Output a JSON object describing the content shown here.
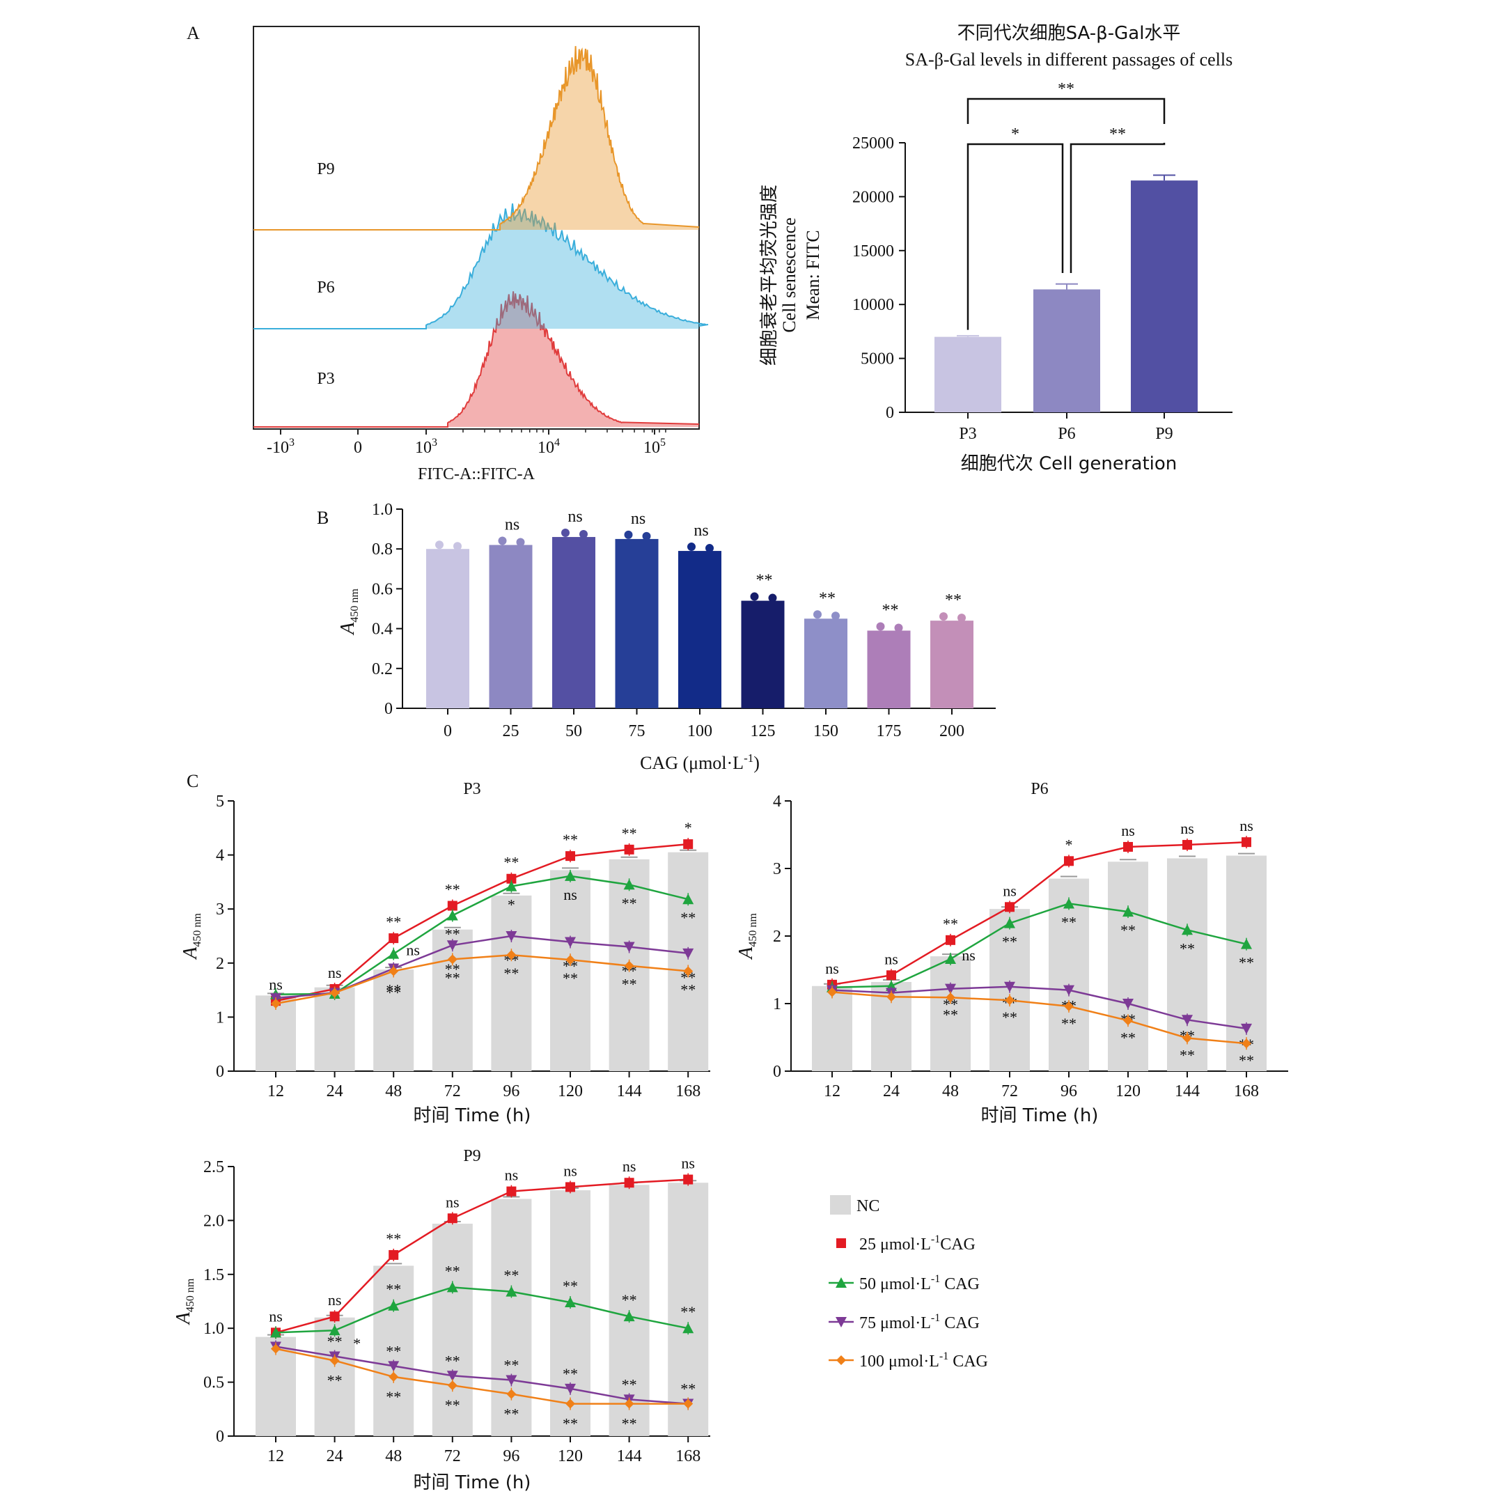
{
  "figure": {
    "panel_labels": {
      "a": "A",
      "b": "B",
      "c": "C"
    }
  },
  "chart_data": [
    {
      "id": "A_histogram",
      "type": "area",
      "xlabel": "FITC-A::FITC-A",
      "x_scale": "biexponential",
      "xticks": [
        "-10^3",
        "0",
        "10^3",
        "10^4",
        "10^5"
      ],
      "tracks": [
        {
          "name": "P3",
          "color": "#e03c3c",
          "label_color": "#d4882a",
          "peak_x": 5200,
          "range": [
            1500,
            40000
          ]
        },
        {
          "name": "P6",
          "color": "#3aaedb",
          "label_color": "#4dbde6",
          "peak_x": 5000,
          "range": [
            1000,
            200000
          ]
        },
        {
          "name": "P9",
          "color": "#e8962a",
          "label_color": "#f2c436",
          "peak_x": 19000,
          "range": [
            4000,
            60000
          ]
        }
      ]
    },
    {
      "id": "A_bar",
      "type": "bar",
      "title_cn": "不同代次细胞SA-β-Gal水平",
      "title_en": "SA-β-Gal levels in different passages of cells",
      "xlabel": "细胞代次 Cell generation",
      "ylabel_cn": "细胞衰老平均荧光强度",
      "ylabel_en1": "Cell senescence",
      "ylabel_en2": "Mean: FITC",
      "categories": [
        "P3",
        "P6",
        "P9"
      ],
      "values": [
        7000,
        11400,
        21500
      ],
      "errors": [
        100,
        500,
        500
      ],
      "colors": [
        "#c8c4e2",
        "#8d88c2",
        "#5250a3"
      ],
      "ylim": [
        0,
        25000
      ],
      "yticks": [
        "0",
        "5000",
        "10000",
        "15000",
        "20000",
        "25000"
      ],
      "significance": [
        {
          "from": "P3",
          "to": "P6",
          "label": "*"
        },
        {
          "from": "P6",
          "to": "P9",
          "label": "**"
        },
        {
          "from": "P3",
          "to": "P9",
          "label": "**"
        }
      ]
    },
    {
      "id": "B",
      "type": "bar",
      "xlabel": "CAG (μmol·L",
      "xlabel_sup": "-1",
      "xlabel_end": ")",
      "ylabel_main": "A",
      "ylabel_sub": "450 nm",
      "categories": [
        "0",
        "25",
        "50",
        "75",
        "100",
        "125",
        "150",
        "175",
        "200"
      ],
      "values": [
        0.8,
        0.82,
        0.86,
        0.85,
        0.79,
        0.54,
        0.45,
        0.39,
        0.44
      ],
      "marks": [
        "",
        "ns",
        "ns",
        "ns",
        "ns",
        "**",
        "**",
        "**",
        "**"
      ],
      "colors": [
        "#c8c4e2",
        "#8d88c2",
        "#5450a3",
        "#263f97",
        "#122b88",
        "#161d6a",
        "#8e8fc8",
        "#ad7eb8",
        "#c38fb8"
      ],
      "ylim": [
        0,
        1.0
      ],
      "yticks": [
        "0",
        "0.2",
        "0.4",
        "0.6",
        "0.8",
        "1.0"
      ]
    },
    {
      "id": "C_P3",
      "type": "line",
      "title": "P3",
      "xlabel": "时间 Time (h)",
      "ylabel_main": "A",
      "ylabel_sub": "450 nm",
      "categories": [
        "12",
        "24",
        "48",
        "72",
        "96",
        "120",
        "144",
        "168"
      ],
      "ylim": [
        0,
        5
      ],
      "yticks": [
        "0",
        "1",
        "2",
        "3",
        "4",
        "5"
      ],
      "nc": [
        1.4,
        1.55,
        1.88,
        2.62,
        3.25,
        3.72,
        3.92,
        4.05
      ],
      "series": [
        {
          "name": "25 μmol·L-1CAG",
          "values": [
            1.3,
            1.52,
            2.46,
            3.06,
            3.56,
            3.98,
            4.1,
            4.2
          ],
          "marks": [
            "ns",
            "ns",
            "**",
            "**",
            "**",
            "**",
            "**",
            "*"
          ]
        },
        {
          "name": "50 μmol·L-1 CAG",
          "values": [
            1.42,
            1.43,
            2.17,
            2.88,
            3.42,
            3.61,
            3.45,
            3.18
          ],
          "marks": [
            "",
            "",
            "ns",
            "**",
            "*",
            "ns",
            "**",
            "**"
          ]
        },
        {
          "name": "75 μmol·L-1 CAG",
          "values": [
            1.35,
            1.45,
            1.9,
            2.33,
            2.5,
            2.39,
            2.3,
            2.18
          ],
          "marks": [
            "",
            "",
            "**",
            "**",
            "**",
            "**",
            "**",
            "**"
          ]
        },
        {
          "name": "100 μmol·L-1 CAG",
          "values": [
            1.25,
            1.45,
            1.85,
            2.07,
            2.15,
            2.06,
            1.95,
            1.85
          ],
          "marks": [
            "",
            "",
            "**",
            "**",
            "**",
            "**",
            "**",
            "**"
          ]
        }
      ]
    },
    {
      "id": "C_P6",
      "type": "line",
      "title": "P6",
      "xlabel": "时间 Time (h)",
      "ylabel_main": "A",
      "ylabel_sub": "450 nm",
      "categories": [
        "12",
        "24",
        "48",
        "72",
        "96",
        "120",
        "144",
        "168"
      ],
      "ylim": [
        0,
        4
      ],
      "yticks": [
        "0",
        "1",
        "2",
        "3",
        "4"
      ],
      "nc": [
        1.26,
        1.32,
        1.7,
        2.4,
        2.85,
        3.1,
        3.15,
        3.19
      ],
      "series": [
        {
          "name": "25 μmol·L-1CAG",
          "values": [
            1.28,
            1.42,
            1.94,
            2.43,
            3.11,
            3.32,
            3.35,
            3.39
          ],
          "marks": [
            "ns",
            "ns",
            "**",
            "ns",
            "*",
            "ns",
            "ns",
            "ns"
          ]
        },
        {
          "name": "50 μmol·L-1 CAG",
          "values": [
            1.24,
            1.26,
            1.66,
            2.19,
            2.48,
            2.36,
            2.09,
            1.88
          ],
          "marks": [
            "",
            "",
            "ns",
            "**",
            "**",
            "**",
            "**",
            "**"
          ]
        },
        {
          "name": "75 μmol·L-1 CAG",
          "values": [
            1.2,
            1.16,
            1.22,
            1.25,
            1.2,
            1.0,
            0.76,
            0.63
          ],
          "marks": [
            "",
            "",
            "**",
            "**",
            "**",
            "**",
            "**",
            "**"
          ]
        },
        {
          "name": "100 μmol·L-1 CAG",
          "values": [
            1.17,
            1.1,
            1.09,
            1.05,
            0.96,
            0.75,
            0.49,
            0.41
          ],
          "marks": [
            "",
            "",
            "**",
            "**",
            "**",
            "**",
            "**",
            "**"
          ]
        }
      ]
    },
    {
      "id": "C_P9",
      "type": "line",
      "title": "P9",
      "xlabel": "时间 Time (h)",
      "ylabel_main": "A",
      "ylabel_sub": "450 nm",
      "categories": [
        "12",
        "24",
        "48",
        "72",
        "96",
        "120",
        "144",
        "168"
      ],
      "ylim": [
        0,
        2.5
      ],
      "yticks": [
        "0",
        "0.5",
        "1.0",
        "1.5",
        "2.0",
        "2.5"
      ],
      "nc": [
        0.92,
        1.1,
        1.58,
        1.97,
        2.2,
        2.28,
        2.33,
        2.35
      ],
      "series": [
        {
          "name": "25 μmol·L-1CAG",
          "values": [
            0.96,
            1.11,
            1.68,
            2.02,
            2.27,
            2.31,
            2.35,
            2.38
          ],
          "marks": [
            "ns",
            "ns",
            "**",
            "ns",
            "ns",
            "ns",
            "ns",
            "ns"
          ]
        },
        {
          "name": "50 μmol·L-1 CAG",
          "values": [
            0.96,
            0.98,
            1.21,
            1.38,
            1.34,
            1.24,
            1.11,
            1.0
          ],
          "marks": [
            "",
            "*",
            "**",
            "**",
            "**",
            "**",
            "**",
            "**"
          ]
        },
        {
          "name": "75 μmol·L-1 CAG",
          "values": [
            0.83,
            0.74,
            0.65,
            0.56,
            0.52,
            0.44,
            0.34,
            0.3
          ],
          "marks": [
            "",
            "**",
            "**",
            "**",
            "**",
            "**",
            "**",
            "**"
          ]
        },
        {
          "name": "100 μmol·L-1 CAG",
          "values": [
            0.81,
            0.7,
            0.55,
            0.47,
            0.39,
            0.3,
            0.3,
            0.3
          ],
          "marks": [
            "",
            "**",
            "**",
            "**",
            "**",
            "**",
            "**",
            ""
          ]
        }
      ]
    }
  ],
  "legend": {
    "items": [
      {
        "label": "NC",
        "color": "#d9d9d9",
        "marker": "bar"
      },
      {
        "label_main": "25 μmol·L",
        "label_sup": "-1",
        "label_end": "CAG",
        "color": "#e31b23",
        "marker": "square"
      },
      {
        "label_main": "50 μmol·L",
        "label_sup": "-1",
        "label_end": " CAG",
        "color": "#1fa53f",
        "marker": "triangle"
      },
      {
        "label_main": "75 μmol·L",
        "label_sup": "-1",
        "label_end": " CAG",
        "color": "#7d3a96",
        "marker": "triangle-down"
      },
      {
        "label_main": "100 μmol·L",
        "label_sup": "-1",
        "label_end": " CAG",
        "color": "#f08018",
        "marker": "diamond"
      }
    ]
  }
}
